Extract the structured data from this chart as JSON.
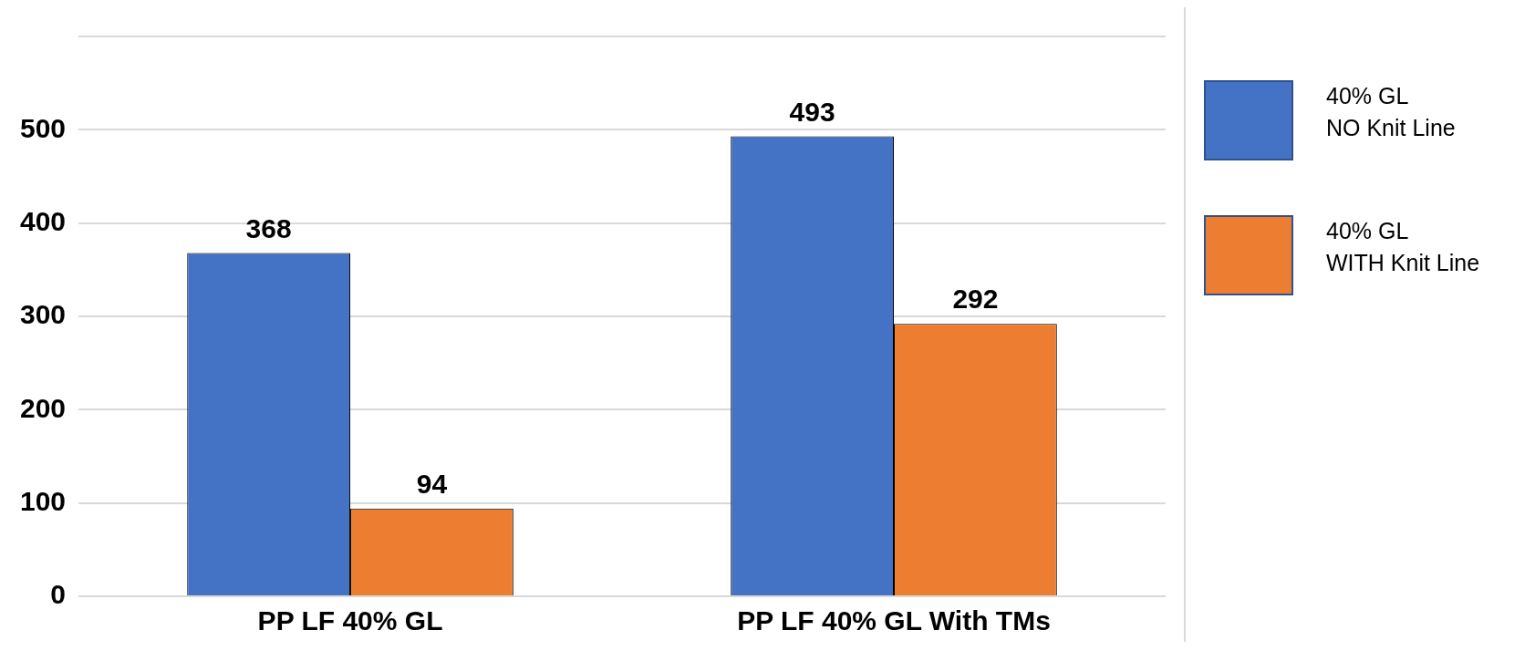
{
  "chart_data": {
    "type": "bar",
    "categories": [
      "PP LF 40% GL",
      "PP LF 40% GL With TMs"
    ],
    "series": [
      {
        "name": "40% GL\nNO Knit Line",
        "color": "#4472c4",
        "values": [
          368,
          493
        ]
      },
      {
        "name": "40% GL\nWITH Knit Line",
        "color": "#ed7d31",
        "values": [
          94,
          292
        ]
      }
    ],
    "ylim": [
      0,
      600
    ],
    "yticks": [
      0,
      100,
      200,
      300,
      400,
      500,
      {
        "value": 600,
        "label": null
      }
    ],
    "grid": "y",
    "data_labels": true,
    "legend": "right"
  }
}
